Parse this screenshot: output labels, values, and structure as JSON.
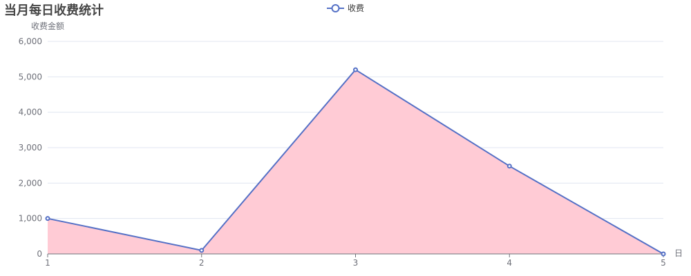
{
  "chart_data": {
    "type": "area",
    "title": "当月每日收费统计",
    "xlabel": "日",
    "ylabel": "收费金额",
    "legend": {
      "position": "top-center",
      "marker": "circle-line-icon"
    },
    "categories": [
      "1",
      "2",
      "3",
      "4",
      "5"
    ],
    "series": [
      {
        "name": "收费",
        "values": [
          1000,
          100,
          5200,
          2480,
          0
        ]
      }
    ],
    "ylim": [
      0,
      6000
    ],
    "yticks": [
      0,
      1000,
      2000,
      3000,
      4000,
      5000,
      6000
    ],
    "ytick_labels": [
      "0",
      "1,000",
      "2,000",
      "3,000",
      "4,000",
      "5,000",
      "6,000"
    ],
    "grid": true,
    "colors": {
      "line": "#5470c6",
      "area": "#ffcbd5",
      "grid": "#e0e6f1",
      "axis": "#6e7079"
    }
  }
}
